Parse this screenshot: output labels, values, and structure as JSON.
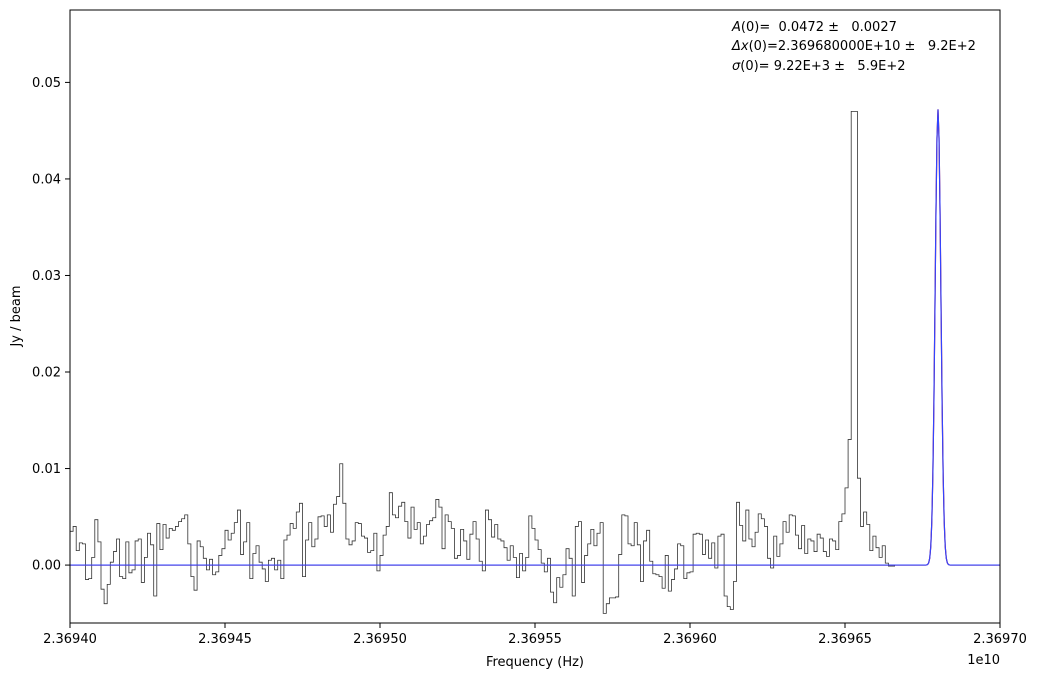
{
  "chart_data": {
    "type": "line",
    "xlabel": "Frequency (Hz)",
    "ylabel": "Jy / beam",
    "x_offset_label": "1e10",
    "xlim": [
      2.3694,
      2.3697
    ],
    "ylim": [
      -0.006,
      0.0575
    ],
    "x_ticks": [
      {
        "value": 2.3694,
        "label": "2.36940"
      },
      {
        "value": 2.36945,
        "label": "2.36945"
      },
      {
        "value": 2.3695,
        "label": "2.36950"
      },
      {
        "value": 2.36955,
        "label": "2.36955"
      },
      {
        "value": 2.3696,
        "label": "2.36960"
      },
      {
        "value": 2.36965,
        "label": "2.36965"
      },
      {
        "value": 2.3697,
        "label": "2.36970"
      }
    ],
    "y_ticks": [
      {
        "value": 0.0,
        "label": "0.00"
      },
      {
        "value": 0.01,
        "label": "0.01"
      },
      {
        "value": 0.02,
        "label": "0.02"
      },
      {
        "value": 0.03,
        "label": "0.03"
      },
      {
        "value": 0.04,
        "label": "0.04"
      },
      {
        "value": 0.05,
        "label": "0.05"
      }
    ],
    "annotations": [
      {
        "symbol": "A",
        "rest": "(0)=  0.0472 ±   0.0027"
      },
      {
        "symbol": "Δx",
        "rest": "(0)=2.369680000E+10 ±   9.2E+2"
      },
      {
        "symbol": "σ",
        "rest": "(0)= 9.22E+3 ±   5.9E+2"
      }
    ],
    "fit": {
      "amplitude": 0.0472,
      "center": 2.36968,
      "sigma": 9.22e-07
    },
    "series": [
      {
        "style": "steps",
        "color": "#333333",
        "x_start": 2.3694,
        "x_step": 1e-06,
        "values": [
          0.0035,
          0.004,
          0.0015,
          0.0023,
          0.0022,
          -0.0015,
          -0.0014,
          0.0008,
          0.0047,
          0.0024,
          -0.0025,
          -0.004,
          -0.002,
          0.0003,
          0.0014,
          0.0027,
          -0.0012,
          -0.0014,
          0.0024,
          -0.0008,
          -0.0005,
          0.0025,
          0.0027,
          -0.0018,
          0.0008,
          0.0033,
          0.0021,
          -0.0032,
          0.0043,
          0.0016,
          0.0042,
          0.0028,
          0.0038,
          0.0036,
          0.004,
          0.0045,
          0.0048,
          0.0052,
          0.0022,
          -0.0012,
          -0.0026,
          0.0025,
          0.0019,
          0.0007,
          -0.0005,
          0.0006,
          -0.001,
          -0.0007,
          0.001,
          0.0017,
          0.0036,
          0.0026,
          0.0033,
          0.0044,
          0.0057,
          0.0011,
          0.0024,
          0.0044,
          -0.0014,
          0.0012,
          0.002,
          0.0003,
          -0.0004,
          -0.0017,
          0.0005,
          0.0007,
          -0.0005,
          0.0005,
          -0.0014,
          0.0026,
          0.0031,
          0.0043,
          0.0038,
          0.0055,
          0.0064,
          -0.0012,
          0.0026,
          0.0044,
          0.0019,
          0.0027,
          0.005,
          0.0051,
          0.004,
          0.0052,
          0.0034,
          0.0063,
          0.0071,
          0.0105,
          0.0064,
          0.0027,
          0.0021,
          0.0025,
          0.0044,
          0.0043,
          0.003,
          0.0028,
          0.0013,
          0.0015,
          0.0033,
          -0.0006,
          0.001,
          0.0031,
          0.004,
          0.0075,
          0.0052,
          0.0049,
          0.0061,
          0.0065,
          0.0045,
          0.0028,
          0.006,
          0.0037,
          0.0044,
          0.0022,
          0.003,
          0.0042,
          0.0046,
          0.0049,
          0.0068,
          0.006,
          0.0017,
          0.0052,
          0.0045,
          0.0038,
          0.0007,
          0.001,
          0.0037,
          0.0025,
          0.0006,
          0.0032,
          0.0045,
          0.0027,
          0.0004,
          -0.0006,
          0.0057,
          0.0047,
          0.0029,
          0.0042,
          0.0027,
          0.0025,
          0.0018,
          0.0005,
          0.002,
          0.0008,
          -0.0013,
          0.0012,
          -0.0006,
          0.0008,
          0.0051,
          0.0038,
          0.0026,
          0.0016,
          0.0002,
          -0.0007,
          0.0007,
          -0.0028,
          -0.0039,
          -0.0013,
          -0.0023,
          -0.001,
          0.0017,
          0.0007,
          -0.0032,
          0.004,
          0.0045,
          -0.0018,
          0.001,
          0.0022,
          0.0037,
          0.002,
          0.0033,
          0.0044,
          -0.005,
          -0.004,
          -0.0034,
          -0.0034,
          -0.0033,
          0.0011,
          0.0052,
          0.0051,
          0.0022,
          0.002,
          0.0044,
          0.0021,
          -0.0017,
          0.0025,
          0.0036,
          0.0004,
          -0.0009,
          -0.001,
          -0.0012,
          -0.0024,
          0.001,
          -0.0027,
          -0.0015,
          -0.0004,
          0.0022,
          0.002,
          -0.0014,
          -0.0008,
          -0.0007,
          0.0032,
          0.0033,
          0.0032,
          0.0011,
          0.0026,
          0.0007,
          0.0023,
          -0.0003,
          0.003,
          0.0032,
          -0.0032,
          -0.0043,
          -0.0046,
          -0.0017,
          0.0065,
          0.0041,
          0.0025,
          0.0057,
          0.0027,
          0.0019,
          0.0034,
          0.0053,
          0.0048,
          0.004,
          0.0007,
          -0.0003,
          0.003,
          0.0009,
          0.0022,
          0.0045,
          0.0034,
          0.0052,
          0.0051,
          0.0031,
          0.0017,
          0.0041,
          0.0012,
          0.0027,
          0.0025,
          0.0014,
          0.0032,
          0.0028,
          0.0014,
          0.0009,
          0.0027,
          0.0025,
          0.0016,
          0.0045,
          0.0053,
          0.008,
          0.013,
          0.047,
          0.047,
          0.009,
          0.004,
          0.0055,
          0.0042,
          0.0015,
          0.003,
          0.0018,
          0.0008,
          0.002,
          0.0002,
          -0.0001,
          -0.0001,
          0.0,
          0.0,
          0.0,
          0.0,
          0.0
        ]
      },
      {
        "style": "gaussian",
        "color": "#d00000"
      },
      {
        "style": "gaussian",
        "color": "#3344ff"
      }
    ]
  }
}
